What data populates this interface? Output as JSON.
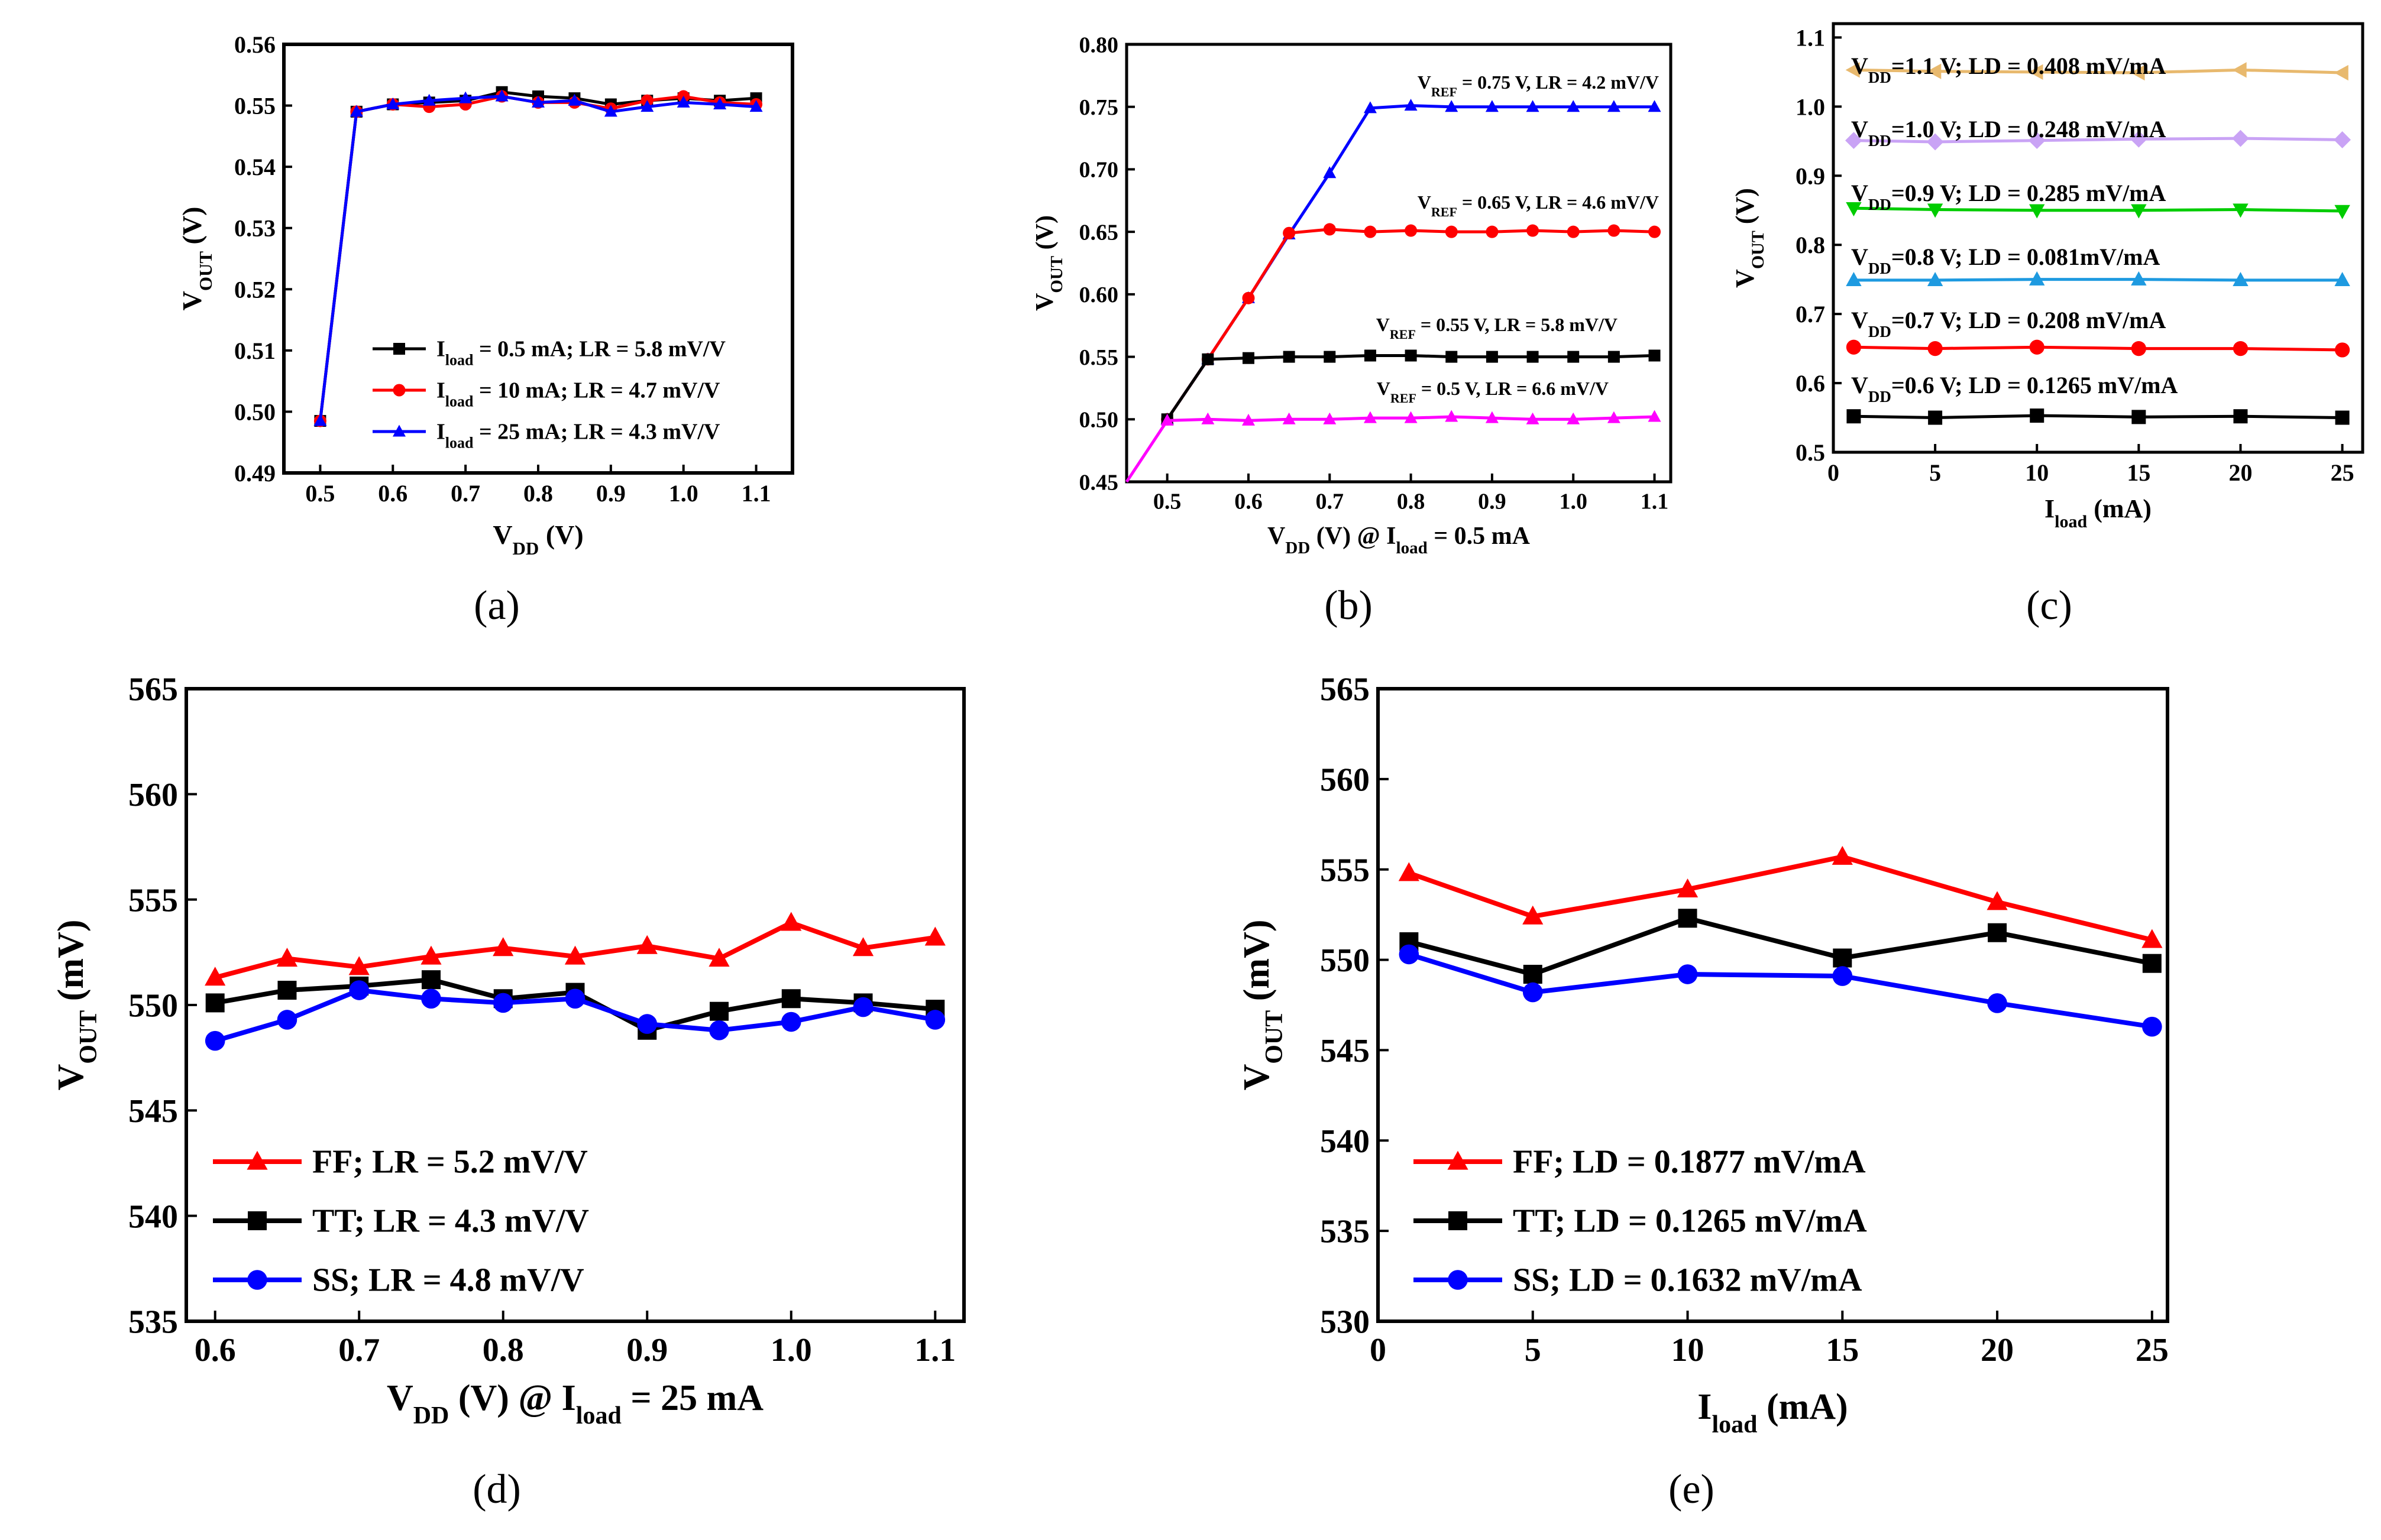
{
  "figure": {
    "panel_labels": [
      "(a)",
      "(b)",
      "(c)",
      "(d)",
      "(e)"
    ]
  },
  "chart_data": [
    {
      "id": "a",
      "type": "line",
      "xlabel": "V_DD (V)",
      "ylabel": "V_OUT (V)",
      "xlim": [
        0.45,
        1.15
      ],
      "ylim": [
        0.49,
        0.56
      ],
      "xticks": [
        "0.5",
        "0.6",
        "0.7",
        "0.8",
        "0.9",
        "1.0",
        "1.1"
      ],
      "yticks": [
        "0.49",
        "0.50",
        "0.51",
        "0.52",
        "0.53",
        "0.54",
        "0.55",
        "0.56"
      ],
      "legend": "lower-right",
      "series": [
        {
          "name": "I_load = 0.5 mA; LR = 5.8 mV/V",
          "color": "#000000",
          "marker": "square",
          "x": [
            0.5,
            0.55,
            0.6,
            0.65,
            0.7,
            0.75,
            0.8,
            0.85,
            0.9,
            0.95,
            1.0,
            1.05,
            1.1
          ],
          "y": [
            0.4985,
            0.549,
            0.5502,
            0.5505,
            0.5508,
            0.5522,
            0.5515,
            0.5512,
            0.5502,
            0.5508,
            0.5512,
            0.5508,
            0.5512
          ]
        },
        {
          "name": "I_load = 10 mA; LR = 4.7 mV/V",
          "color": "#ff0000",
          "marker": "circle",
          "x": [
            0.5,
            0.55,
            0.6,
            0.65,
            0.7,
            0.75,
            0.8,
            0.85,
            0.9,
            0.95,
            1.0,
            1.05,
            1.1
          ],
          "y": [
            0.4985,
            0.549,
            0.5502,
            0.5498,
            0.5502,
            0.5515,
            0.5505,
            0.5505,
            0.5495,
            0.5508,
            0.5515,
            0.5505,
            0.5502
          ]
        },
        {
          "name": "I_load = 25 mA; LR = 4.3 mV/V",
          "color": "#0000ff",
          "marker": "triangle",
          "x": [
            0.5,
            0.55,
            0.6,
            0.65,
            0.7,
            0.75,
            0.8,
            0.85,
            0.9,
            0.95,
            1.0,
            1.05,
            1.1
          ],
          "y": [
            0.4985,
            0.549,
            0.5502,
            0.5508,
            0.5512,
            0.5515,
            0.5505,
            0.5508,
            0.549,
            0.5498,
            0.5505,
            0.5502,
            0.5498
          ]
        }
      ]
    },
    {
      "id": "b",
      "type": "line",
      "xlabel": "V_DD (V) @ I_load = 0.5 mA",
      "ylabel": "V_OUT (V)",
      "xlim": [
        0.45,
        1.12
      ],
      "ylim": [
        0.45,
        0.8
      ],
      "xticks": [
        "0.5",
        "0.6",
        "0.7",
        "0.8",
        "0.9",
        "1.0",
        "1.1"
      ],
      "yticks": [
        "0.45",
        "0.50",
        "0.55",
        "0.60",
        "0.65",
        "0.70",
        "0.75",
        "0.80"
      ],
      "series": [
        {
          "name": "V_REF = 0.75 V, LR = 4.2 mV/V",
          "color": "#0000ff",
          "marker": "triangle",
          "x": [
            0.5,
            0.55,
            0.6,
            0.65,
            0.7,
            0.75,
            0.8,
            0.85,
            0.9,
            0.95,
            1.0,
            1.05,
            1.1
          ],
          "y": [
            0.5,
            0.548,
            0.597,
            0.648,
            0.697,
            0.749,
            0.751,
            0.75,
            0.75,
            0.75,
            0.75,
            0.75,
            0.75
          ]
        },
        {
          "name": "V_REF = 0.65 V, LR = 4.6 mV/V",
          "color": "#ff0000",
          "marker": "circle",
          "x": [
            0.5,
            0.55,
            0.6,
            0.65,
            0.7,
            0.75,
            0.8,
            0.85,
            0.9,
            0.95,
            1.0,
            1.05,
            1.1
          ],
          "y": [
            0.5,
            0.548,
            0.597,
            0.649,
            0.652,
            0.65,
            0.651,
            0.65,
            0.65,
            0.651,
            0.65,
            0.651,
            0.65
          ]
        },
        {
          "name": "V_REF = 0.55 V, LR = 5.8 mV/V",
          "color": "#000000",
          "marker": "square",
          "x": [
            0.5,
            0.55,
            0.6,
            0.65,
            0.7,
            0.75,
            0.8,
            0.85,
            0.9,
            0.95,
            1.0,
            1.05,
            1.1
          ],
          "y": [
            0.5,
            0.548,
            0.549,
            0.55,
            0.55,
            0.551,
            0.551,
            0.55,
            0.55,
            0.55,
            0.55,
            0.55,
            0.551
          ]
        },
        {
          "name": "V_REF = 0.5 V, LR = 6.6 mV/V",
          "color": "#ff00ff",
          "marker": "triangle",
          "x": [
            0.45,
            0.5,
            0.55,
            0.6,
            0.65,
            0.7,
            0.75,
            0.8,
            0.85,
            0.9,
            0.95,
            1.0,
            1.05,
            1.1
          ],
          "y": [
            0.45,
            0.499,
            0.5,
            0.499,
            0.5,
            0.5,
            0.501,
            0.501,
            0.502,
            0.501,
            0.5,
            0.5,
            0.501,
            0.502
          ]
        }
      ]
    },
    {
      "id": "c",
      "type": "line",
      "xlabel": "I_load (mA)",
      "ylabel": "V_OUT (V)",
      "xlim": [
        0,
        26
      ],
      "ylim": [
        0.5,
        1.12
      ],
      "xticks": [
        "0",
        "5",
        "10",
        "15",
        "20",
        "25"
      ],
      "yticks": [
        "0.5",
        "0.6",
        "0.7",
        "0.8",
        "0.9",
        "1.0",
        "1.1"
      ],
      "series": [
        {
          "name": "V_DD=1.1 V; LD = 0.408 mV/mA",
          "color": "#e8b96e",
          "marker": "triangle-left",
          "x": [
            1,
            5,
            10,
            15,
            20,
            25
          ],
          "y": [
            1.053,
            1.051,
            1.05,
            1.049,
            1.053,
            1.049
          ]
        },
        {
          "name": "V_DD=1.0 V; LD = 0.248 mV/mA",
          "color": "#c9a3f5",
          "marker": "diamond",
          "x": [
            1,
            5,
            10,
            15,
            20,
            25
          ],
          "y": [
            0.951,
            0.949,
            0.951,
            0.953,
            0.954,
            0.952
          ]
        },
        {
          "name": "V_DD=0.9 V; LD = 0.285 mV/mA",
          "color": "#00cc00",
          "marker": "triangle-down",
          "x": [
            1,
            5,
            10,
            15,
            20,
            25
          ],
          "y": [
            0.853,
            0.851,
            0.85,
            0.85,
            0.851,
            0.849
          ]
        },
        {
          "name": "V_DD=0.8 V; LD = 0.081mV/mA",
          "color": "#1e9ae0",
          "marker": "triangle",
          "x": [
            1,
            5,
            10,
            15,
            20,
            25
          ],
          "y": [
            0.749,
            0.749,
            0.75,
            0.75,
            0.749,
            0.749
          ]
        },
        {
          "name": "V_DD=0.7 V; LD = 0.208 mV/mA",
          "color": "#ff0000",
          "marker": "circle",
          "x": [
            1,
            5,
            10,
            15,
            20,
            25
          ],
          "y": [
            0.652,
            0.65,
            0.652,
            0.65,
            0.65,
            0.648
          ]
        },
        {
          "name": "V_DD=0.6 V; LD = 0.1265 mV/mA",
          "color": "#000000",
          "marker": "square",
          "x": [
            1,
            5,
            10,
            15,
            20,
            25
          ],
          "y": [
            0.552,
            0.55,
            0.553,
            0.551,
            0.552,
            0.55
          ]
        }
      ]
    },
    {
      "id": "d",
      "type": "line",
      "xlabel": "V_DD (V) @ I_load = 25 mA",
      "ylabel": "V_OUT (mV)",
      "xlim": [
        0.58,
        1.12
      ],
      "ylim": [
        535,
        565
      ],
      "xticks": [
        "0.6",
        "0.7",
        "0.8",
        "0.9",
        "1.0",
        "1.1"
      ],
      "yticks": [
        "535",
        "540",
        "545",
        "550",
        "555",
        "560",
        "565"
      ],
      "legend": "lower-left",
      "series": [
        {
          "name": "FF; LR = 5.2 mV/V",
          "color": "#ff0000",
          "marker": "triangle",
          "x": [
            0.6,
            0.65,
            0.7,
            0.75,
            0.8,
            0.85,
            0.9,
            0.95,
            1.0,
            1.05,
            1.1
          ],
          "y": [
            551.3,
            552.2,
            551.8,
            552.3,
            552.7,
            552.3,
            552.8,
            552.2,
            553.9,
            552.7,
            553.2
          ]
        },
        {
          "name": "TT; LR = 4.3 mV/V",
          "color": "#000000",
          "marker": "square",
          "x": [
            0.6,
            0.65,
            0.7,
            0.75,
            0.8,
            0.85,
            0.9,
            0.95,
            1.0,
            1.05,
            1.1
          ],
          "y": [
            550.1,
            550.7,
            550.9,
            551.2,
            550.3,
            550.6,
            548.8,
            549.7,
            550.3,
            550.1,
            549.8
          ]
        },
        {
          "name": "SS;  LR = 4.8 mV/V",
          "color": "#0000ff",
          "marker": "circle",
          "x": [
            0.6,
            0.65,
            0.7,
            0.75,
            0.8,
            0.85,
            0.9,
            0.95,
            1.0,
            1.05,
            1.1
          ],
          "y": [
            548.3,
            549.3,
            550.7,
            550.3,
            550.1,
            550.3,
            549.1,
            548.8,
            549.2,
            549.9,
            549.3
          ]
        }
      ]
    },
    {
      "id": "e",
      "type": "line",
      "xlabel": "I_load (mA)",
      "ylabel": "V_OUT (mV)",
      "xlim": [
        0,
        25.5
      ],
      "ylim": [
        530,
        565
      ],
      "xticks": [
        "0",
        "5",
        "10",
        "15",
        "20",
        "25"
      ],
      "yticks": [
        "530",
        "535",
        "540",
        "545",
        "550",
        "555",
        "560",
        "565"
      ],
      "legend": "lower-left",
      "series": [
        {
          "name": "FF; LD = 0.1877 mV/mA",
          "color": "#ff0000",
          "marker": "triangle",
          "x": [
            1,
            5,
            10,
            15,
            20,
            25
          ],
          "y": [
            554.8,
            552.4,
            553.9,
            555.7,
            553.2,
            551.1
          ]
        },
        {
          "name": "TT; LD = 0.1265 mV/mA",
          "color": "#000000",
          "marker": "square",
          "x": [
            1,
            5,
            10,
            15,
            20,
            25
          ],
          "y": [
            551.0,
            549.2,
            552.3,
            550.1,
            551.5,
            549.8
          ]
        },
        {
          "name": "SS; LD = 0.1632 mV/mA",
          "color": "#0000ff",
          "marker": "circle",
          "x": [
            1,
            5,
            10,
            15,
            20,
            25
          ],
          "y": [
            550.3,
            548.2,
            549.2,
            549.1,
            547.6,
            546.3
          ]
        }
      ]
    }
  ]
}
